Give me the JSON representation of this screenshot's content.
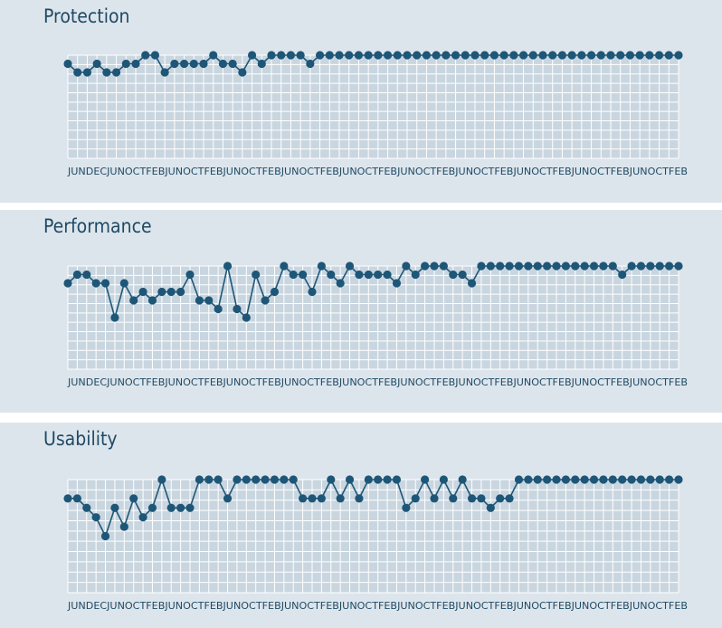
{
  "chart_data": [
    {
      "type": "line",
      "title": "Protection",
      "x_tick_labels": "JUNDECJUNOCTFEBJUNOCTFEBJUNOCTFEBJUNOCTFEBJUNOCTFEBJUNOCTFEBJUNOCTFEBJUNOCTFEBJUNOCTFEBJUNOCTFEB",
      "ylim": [
        0,
        6
      ],
      "values": [
        5.5,
        5.0,
        5.0,
        5.5,
        5.0,
        5.0,
        5.5,
        5.5,
        6.0,
        6.0,
        5.0,
        5.5,
        5.5,
        5.5,
        5.5,
        6.0,
        5.5,
        5.5,
        5.0,
        6.0,
        5.5,
        6.0,
        6.0,
        6.0,
        6.0,
        5.5,
        6.0,
        6.0,
        6.0,
        6.0,
        6.0,
        6.0,
        6.0,
        6.0,
        6.0,
        6.0,
        6.0,
        6.0,
        6.0,
        6.0,
        6.0,
        6.0,
        6.0,
        6.0,
        6.0,
        6.0,
        6.0,
        6.0,
        6.0,
        6.0,
        6.0,
        6.0,
        6.0,
        6.0,
        6.0,
        6.0,
        6.0,
        6.0,
        6.0,
        6.0,
        6.0,
        6.0,
        6.0,
        6.0
      ],
      "grid": true,
      "colors": {
        "line": "#1e5677",
        "point": "#1e5677",
        "plot_bg": "#c9d6e0",
        "grid": "#ffffff",
        "panel_bg": "#dde5ec"
      }
    },
    {
      "type": "line",
      "title": "Performance",
      "x_tick_labels": "JUNDECJUNOCTFEBJUNOCTFEBJUNOCTFEBJUNOCTFEBJUNOCTFEBJUNOCTFEBJUNOCTFEBJUNOCTFEBJUNOCTFEBJUNOCTFEB",
      "ylim": [
        0,
        6
      ],
      "values": [
        5.0,
        5.5,
        5.5,
        5.0,
        5.0,
        3.0,
        5.0,
        4.0,
        4.5,
        4.0,
        4.5,
        4.5,
        4.5,
        5.5,
        4.0,
        4.0,
        3.5,
        6.0,
        3.5,
        3.0,
        5.5,
        4.0,
        4.5,
        6.0,
        5.5,
        5.5,
        4.5,
        6.0,
        5.5,
        5.0,
        6.0,
        5.5,
        5.5,
        5.5,
        5.5,
        5.0,
        6.0,
        5.5,
        6.0,
        6.0,
        6.0,
        5.5,
        5.5,
        5.0,
        6.0,
        6.0,
        6.0,
        6.0,
        6.0,
        6.0,
        6.0,
        6.0,
        6.0,
        6.0,
        6.0,
        6.0,
        6.0,
        6.0,
        6.0,
        5.5,
        6.0,
        6.0,
        6.0,
        6.0,
        6.0,
        6.0
      ],
      "grid": true,
      "colors": {
        "line": "#1e5677",
        "point": "#1e5677",
        "plot_bg": "#c9d6e0",
        "grid": "#ffffff",
        "panel_bg": "#dde5ec"
      }
    },
    {
      "type": "line",
      "title": "Usability",
      "x_tick_labels": "JUNDECJUNOCTFEBJUNOCTFEBJUNOCTFEBJUNOCTFEBJUNOCTFEBJUNOCTFEBJUNOCTFEBJUNOCTFEBJUNOCTFEBJUNOCTFEB",
      "ylim": [
        0,
        6
      ],
      "values": [
        5.0,
        5.0,
        4.5,
        4.0,
        3.0,
        4.5,
        3.5,
        5.0,
        4.0,
        4.5,
        6.0,
        4.5,
        4.5,
        4.5,
        6.0,
        6.0,
        6.0,
        5.0,
        6.0,
        6.0,
        6.0,
        6.0,
        6.0,
        6.0,
        6.0,
        5.0,
        5.0,
        5.0,
        6.0,
        5.0,
        6.0,
        5.0,
        6.0,
        6.0,
        6.0,
        6.0,
        4.5,
        5.0,
        6.0,
        5.0,
        6.0,
        5.0,
        6.0,
        5.0,
        5.0,
        4.5,
        5.0,
        5.0,
        6.0,
        6.0,
        6.0,
        6.0,
        6.0,
        6.0,
        6.0,
        6.0,
        6.0,
        6.0,
        6.0,
        6.0,
        6.0,
        6.0,
        6.0,
        6.0,
        6.0,
        6.0
      ],
      "grid": true,
      "colors": {
        "line": "#1e5677",
        "point": "#1e5677",
        "plot_bg": "#c9d6e0",
        "grid": "#ffffff",
        "panel_bg": "#dde5ec"
      }
    }
  ]
}
